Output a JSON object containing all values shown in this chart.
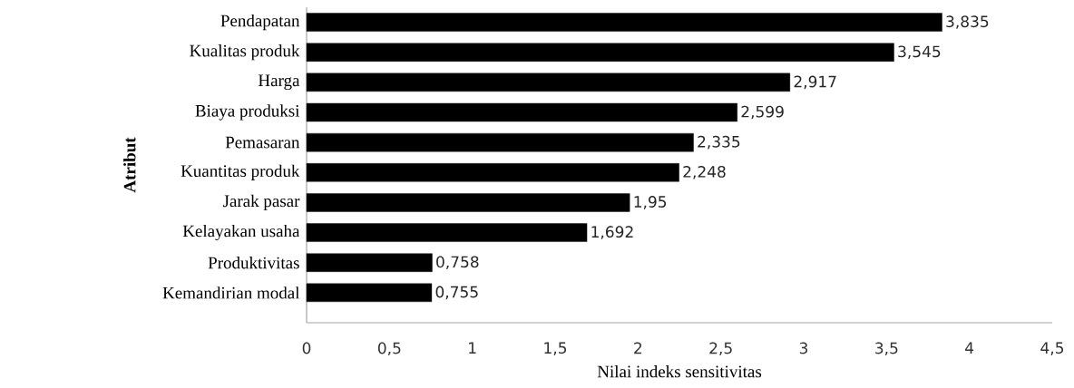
{
  "chart_data": {
    "type": "bar",
    "orientation": "horizontal",
    "categories": [
      "Pendapatan",
      "Kualitas produk",
      "Harga",
      "Biaya produksi",
      "Pemasaran",
      "Kuantitas produk",
      "Jarak pasar",
      "Kelayakan usaha",
      "Produktivitas",
      "Kemandirian modal"
    ],
    "values": [
      3.835,
      3.545,
      2.917,
      2.599,
      2.335,
      2.248,
      1.95,
      1.692,
      0.758,
      0.755
    ],
    "value_labels": [
      "3,835",
      "3,545",
      "2,917",
      "2,599",
      "2,335",
      "2,248",
      "1,95",
      "1,692",
      "0,758",
      "0,755"
    ],
    "color": "#000000",
    "xlabel": "Nilai indeks sensitivitas",
    "ylabel": "Atribut",
    "xlim": [
      0,
      4.5
    ],
    "xticks": [
      0,
      {
        "value": 0.5,
        "label": "0,5"
      },
      1,
      {
        "value": 1.5,
        "label": "1,5"
      },
      2,
      {
        "value": 2.5,
        "label": "2,5"
      },
      3,
      {
        "value": 3.5,
        "label": "3,5"
      },
      4,
      {
        "value": 4.5,
        "label": "4,5"
      }
    ],
    "grid": false
  }
}
